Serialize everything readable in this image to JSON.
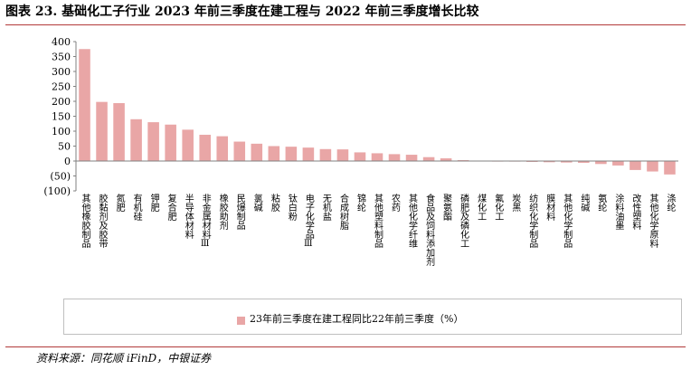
{
  "figure": {
    "title": "图表 23. 基础化工子行业 2023 年前三季度在建工程与 2022 年前三季度增长比较",
    "source": "资料来源：同花顺 iFinD，中银证券"
  },
  "colors": {
    "bar": "#e9a6a6",
    "accent_rule": "#b23a3a",
    "axis": "#808080",
    "legend_border": "#bfbfbf"
  },
  "chart_data": {
    "type": "bar",
    "xlabel": "",
    "ylabel": "",
    "ylim": [
      -100,
      400
    ],
    "yticks": [
      400,
      350,
      300,
      250,
      200,
      150,
      100,
      50,
      0,
      -50,
      -100
    ],
    "ytick_labels": [
      "400",
      "350",
      "300",
      "250",
      "200",
      "150",
      "100",
      "50",
      "0",
      "(50)",
      "(100)"
    ],
    "grid": false,
    "legend_position": "bottom",
    "categories": [
      "其他橡胶制品",
      "胶黏剂及胶带",
      "氮肥",
      "有机硅",
      "钾肥",
      "复合肥",
      "半导体材料",
      "非金属材料Ⅲ",
      "橡胶助剂",
      "民爆制品",
      "氯碱",
      "粘胶",
      "钛白粉",
      "电子化学品Ⅲ",
      "无机盐",
      "合成树脂",
      "锦纶",
      "其他塑料制品",
      "农药",
      "其他化学纤维",
      "食品及饲料添加剂",
      "聚氨酯",
      "磷肥及磷化工",
      "煤化工",
      "氟化工",
      "炭黑",
      "纺织化学制品",
      "膜材料",
      "其他化学制品",
      "纯碱",
      "氨纶",
      "涂料油墨",
      "改性塑料",
      "其他化学原料",
      "涤纶"
    ],
    "series": [
      {
        "name": "23年前三季度在建工程同比22年前三季度（%）",
        "values": [
          375,
          198,
          194,
          140,
          130,
          122,
          105,
          88,
          83,
          65,
          58,
          50,
          48,
          45,
          40,
          39,
          29,
          26,
          23,
          21,
          13,
          9,
          3,
          1,
          0,
          0,
          -3,
          -4,
          -5,
          -6,
          -10,
          -15,
          -30,
          -35,
          -45
        ]
      }
    ]
  }
}
